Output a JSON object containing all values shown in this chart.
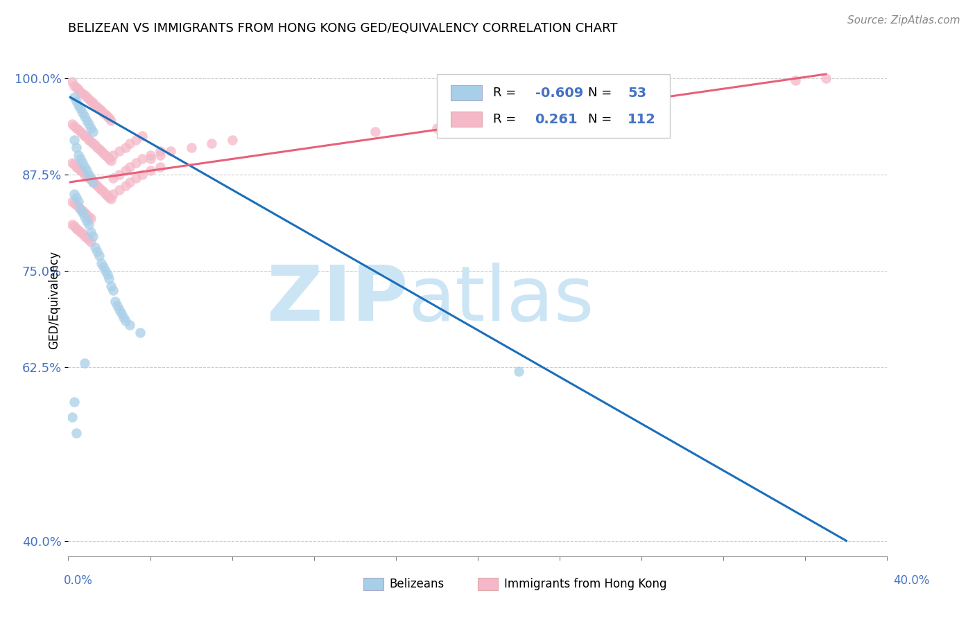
{
  "title": "BELIZEAN VS IMMIGRANTS FROM HONG KONG GED/EQUIVALENCY CORRELATION CHART",
  "source": "Source: ZipAtlas.com",
  "ylabel": "GED/Equivalency",
  "ytick_labels": [
    "100.0%",
    "87.5%",
    "75.0%",
    "62.5%",
    ""
  ],
  "ytick_values": [
    1.0,
    0.875,
    0.75,
    0.625,
    0.4
  ],
  "ytick_right_labels": [
    "100.0%",
    "87.5%",
    "75.0%",
    "62.5%",
    "40.0%"
  ],
  "xlim": [
    0.0,
    0.4
  ],
  "ylim": [
    0.38,
    1.045
  ],
  "legend_R_blue": "-0.609",
  "legend_N_blue": "53",
  "legend_R_pink": "0.261",
  "legend_N_pink": "112",
  "blue_color": "#a8cfe8",
  "pink_color": "#f4b8c8",
  "trend_blue_color": "#1a6fba",
  "trend_pink_color": "#e8607a",
  "watermark_zip": "ZIP",
  "watermark_atlas": "atlas",
  "watermark_color": "#cce5f5",
  "blue_trend_x0": 0.001,
  "blue_trend_y0": 0.975,
  "blue_trend_x1": 0.38,
  "blue_trend_y1": 0.4,
  "pink_trend_x0": 0.001,
  "pink_trend_y0": 0.865,
  "pink_trend_x1": 0.37,
  "pink_trend_y1": 1.005,
  "blue_scatter_x": [
    0.003,
    0.004,
    0.005,
    0.006,
    0.007,
    0.008,
    0.009,
    0.01,
    0.011,
    0.012,
    0.003,
    0.004,
    0.005,
    0.006,
    0.007,
    0.008,
    0.009,
    0.01,
    0.011,
    0.012,
    0.003,
    0.004,
    0.005,
    0.006,
    0.007,
    0.008,
    0.009,
    0.01,
    0.011,
    0.012,
    0.013,
    0.014,
    0.015,
    0.016,
    0.017,
    0.018,
    0.019,
    0.02,
    0.021,
    0.022,
    0.023,
    0.024,
    0.025,
    0.026,
    0.027,
    0.028,
    0.03,
    0.035,
    0.008,
    0.22,
    0.003,
    0.002,
    0.004
  ],
  "blue_scatter_y": [
    0.975,
    0.97,
    0.965,
    0.96,
    0.955,
    0.95,
    0.945,
    0.94,
    0.935,
    0.93,
    0.92,
    0.91,
    0.9,
    0.895,
    0.89,
    0.885,
    0.88,
    0.875,
    0.87,
    0.865,
    0.85,
    0.845,
    0.84,
    0.83,
    0.825,
    0.82,
    0.815,
    0.81,
    0.8,
    0.795,
    0.78,
    0.775,
    0.77,
    0.76,
    0.755,
    0.75,
    0.745,
    0.74,
    0.73,
    0.725,
    0.71,
    0.705,
    0.7,
    0.695,
    0.69,
    0.685,
    0.68,
    0.67,
    0.63,
    0.62,
    0.58,
    0.56,
    0.54
  ],
  "pink_scatter_x": [
    0.002,
    0.003,
    0.004,
    0.005,
    0.006,
    0.007,
    0.008,
    0.009,
    0.01,
    0.011,
    0.012,
    0.013,
    0.014,
    0.015,
    0.016,
    0.017,
    0.018,
    0.019,
    0.02,
    0.021,
    0.002,
    0.003,
    0.004,
    0.005,
    0.006,
    0.007,
    0.008,
    0.009,
    0.01,
    0.011,
    0.012,
    0.013,
    0.014,
    0.015,
    0.016,
    0.017,
    0.018,
    0.019,
    0.02,
    0.021,
    0.002,
    0.003,
    0.004,
    0.005,
    0.006,
    0.007,
    0.008,
    0.009,
    0.01,
    0.011,
    0.012,
    0.013,
    0.014,
    0.015,
    0.016,
    0.017,
    0.018,
    0.019,
    0.02,
    0.021,
    0.002,
    0.003,
    0.004,
    0.005,
    0.006,
    0.007,
    0.008,
    0.009,
    0.01,
    0.011,
    0.022,
    0.025,
    0.028,
    0.03,
    0.033,
    0.036,
    0.04,
    0.045,
    0.05,
    0.06,
    0.07,
    0.08,
    0.022,
    0.025,
    0.028,
    0.03,
    0.033,
    0.036,
    0.04,
    0.045,
    0.002,
    0.003,
    0.004,
    0.005,
    0.006,
    0.007,
    0.008,
    0.009,
    0.01,
    0.011,
    0.022,
    0.025,
    0.028,
    0.03,
    0.033,
    0.036,
    0.04,
    0.045,
    0.355,
    0.37,
    0.15,
    0.18
  ],
  "pink_scatter_y": [
    0.995,
    0.99,
    0.988,
    0.985,
    0.982,
    0.98,
    0.978,
    0.975,
    0.973,
    0.97,
    0.968,
    0.965,
    0.963,
    0.96,
    0.958,
    0.955,
    0.953,
    0.95,
    0.948,
    0.945,
    0.94,
    0.938,
    0.935,
    0.933,
    0.93,
    0.928,
    0.925,
    0.923,
    0.92,
    0.918,
    0.915,
    0.913,
    0.91,
    0.908,
    0.905,
    0.903,
    0.9,
    0.898,
    0.895,
    0.893,
    0.89,
    0.888,
    0.885,
    0.883,
    0.88,
    0.878,
    0.875,
    0.873,
    0.87,
    0.868,
    0.865,
    0.863,
    0.86,
    0.858,
    0.855,
    0.853,
    0.85,
    0.848,
    0.845,
    0.843,
    0.84,
    0.838,
    0.835,
    0.833,
    0.83,
    0.828,
    0.825,
    0.823,
    0.82,
    0.818,
    0.9,
    0.905,
    0.91,
    0.915,
    0.92,
    0.925,
    0.895,
    0.9,
    0.905,
    0.91,
    0.915,
    0.92,
    0.87,
    0.875,
    0.88,
    0.885,
    0.89,
    0.895,
    0.9,
    0.905,
    0.81,
    0.808,
    0.805,
    0.803,
    0.8,
    0.798,
    0.795,
    0.793,
    0.79,
    0.788,
    0.85,
    0.855,
    0.86,
    0.865,
    0.87,
    0.875,
    0.88,
    0.885,
    0.997,
    1.0,
    0.93,
    0.935
  ]
}
